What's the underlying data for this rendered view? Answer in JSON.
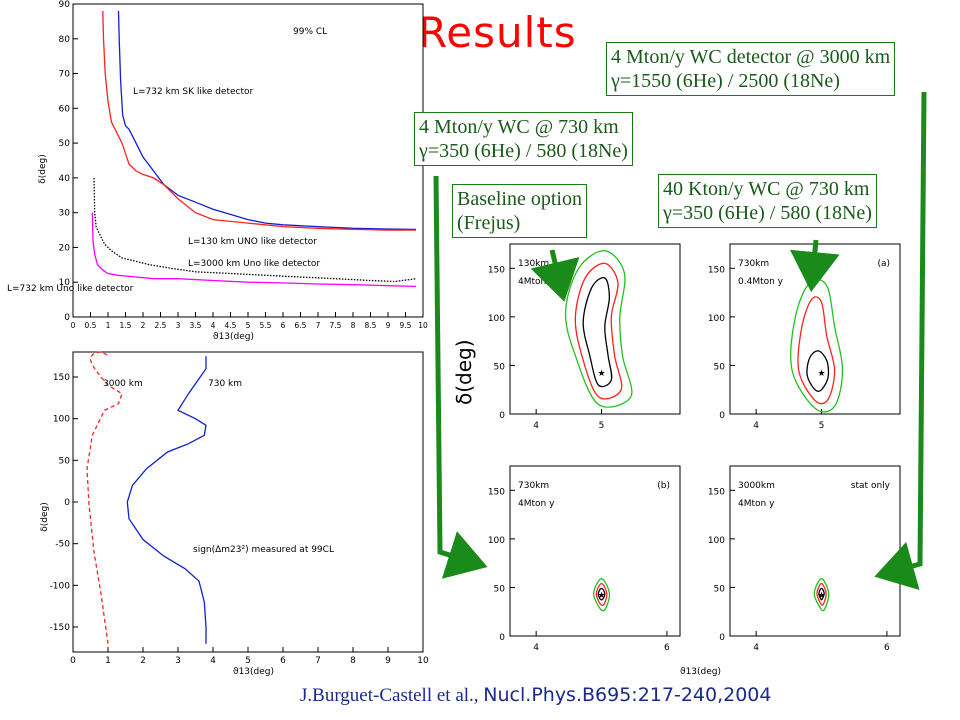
{
  "slide": {
    "title": "Results",
    "citation_authors": "J.Burguet-Castell et al.,",
    "citation_journal": "Nucl.Phys.B695:217-240,2004"
  },
  "callouts": {
    "box_3000": {
      "line1": "4 Mton/y WC detector @ 3000 km",
      "line2": "γ=1550 (6He) / 2500 (18Ne)"
    },
    "box_730_4mton": {
      "line1": "4 Mton/y WC @ 730 km",
      "line2": "γ=350 (6He) / 580 (18Ne)"
    },
    "box_baseline": {
      "line1": "Baseline option",
      "line2": "(Frejus)"
    },
    "box_730_40kton": {
      "line1": "40 Kton/y WC @ 730 km",
      "line2": "γ=350 (6He) / 580 (18Ne)"
    }
  },
  "colors": {
    "arrow": "#1a8a1a",
    "red": "#ff2020",
    "blue": "#1020d0",
    "magenta": "#ff00ff",
    "green": "#20c020",
    "title": "#ff0000"
  },
  "chart_data": [
    {
      "type": "line",
      "title": "99% CL",
      "xlabel": "ϑ13(deg)",
      "ylabel": "δ(deg)",
      "xlim": [
        0,
        10
      ],
      "ylim": [
        0,
        90
      ],
      "xticks": [
        "0",
        "0.5",
        "1",
        "1.5",
        "2",
        "2.5",
        "3",
        "3.5",
        "4",
        "4.5",
        "5",
        "5.5",
        "6",
        "6.5",
        "7",
        "7.5",
        "8",
        "8.5",
        "9",
        "9.5",
        "10"
      ],
      "yticks": [
        "0",
        "10",
        "20",
        "30",
        "40",
        "50",
        "60",
        "70",
        "80",
        "90"
      ],
      "series": [
        {
          "name": "L=732 km SK like detector",
          "color": "#1020d0",
          "style": "solid",
          "x": [
            1.3,
            1.32,
            1.36,
            1.42,
            1.5,
            1.6,
            1.8,
            2.0,
            2.3,
            2.6,
            3.0,
            3.5,
            4.0,
            5.0,
            5.5,
            6.0,
            7.0,
            8.0,
            9.0,
            9.8
          ],
          "y": [
            88,
            80,
            68,
            58,
            55,
            54,
            50,
            46,
            42,
            38,
            35,
            33,
            31,
            28,
            27,
            26.5,
            26,
            25.5,
            25.3,
            25.2
          ]
        },
        {
          "name": "L=130 km UNO like detector",
          "color": "#ff2020",
          "style": "solid",
          "x": [
            0.85,
            0.87,
            0.92,
            1.0,
            1.1,
            1.25,
            1.4,
            1.6,
            1.8,
            2.0,
            2.3,
            2.6,
            3.0,
            3.5,
            4.0,
            5.0,
            6.0,
            7.0,
            8.0,
            9.0,
            9.8
          ],
          "y": [
            88,
            80,
            70,
            62,
            56,
            53,
            50,
            44,
            42,
            41,
            40,
            38,
            34,
            30,
            28,
            27,
            26,
            25.5,
            25.2,
            25,
            25
          ]
        },
        {
          "name": "L=3000 km Uno like detector",
          "color": "#000000",
          "style": "dotted",
          "x": [
            0.6,
            0.62,
            0.66,
            0.75,
            0.9,
            1.1,
            1.4,
            1.8,
            2.2,
            2.8,
            3.5,
            4.5,
            5.5,
            6.5,
            7.5,
            8.5,
            9.2,
            9.8
          ],
          "y": [
            40,
            30,
            26,
            24,
            21,
            19,
            17,
            16,
            15,
            14,
            13,
            12.5,
            12,
            11.5,
            11,
            10.5,
            10.2,
            11
          ]
        },
        {
          "name": "L=732 km Uno like detector",
          "color": "#ff00ff",
          "style": "solid",
          "x": [
            0.55,
            0.57,
            0.62,
            0.7,
            0.85,
            1.0,
            1.3,
            1.8,
            2.3,
            3.0,
            4.0,
            5.0,
            6.0,
            7.0,
            8.0,
            9.0,
            9.8
          ],
          "y": [
            30,
            22,
            18,
            15,
            13.5,
            12.5,
            12,
            11.5,
            11,
            11,
            10.5,
            10,
            9.8,
            9.5,
            9.3,
            9,
            8.8
          ]
        }
      ]
    },
    {
      "type": "line",
      "title": "",
      "xlabel": "ϑ13(deg)",
      "ylabel": "δ(deg)",
      "annotation": "sign(Δm23²) measured at 99CL",
      "xlim": [
        0,
        10
      ],
      "ylim": [
        -180,
        180
      ],
      "xticks": [
        "0",
        "1",
        "2",
        "3",
        "4",
        "5",
        "6",
        "7",
        "8",
        "9",
        "10"
      ],
      "yticks": [
        "-150",
        "-100",
        "-50",
        "0",
        "50",
        "100",
        "150"
      ],
      "series": [
        {
          "name": "3000 km",
          "color": "#ff2020",
          "style": "dashed",
          "x": [
            1.0,
            0.9,
            0.8,
            0.6,
            0.45,
            0.4,
            0.55,
            0.9,
            1.3,
            1.4,
            1.0,
            0.8,
            0.65,
            0.55,
            0.5,
            0.52,
            0.6,
            0.75,
            0.9,
            1.05
          ],
          "y": [
            -170,
            -140,
            -110,
            -60,
            0,
            40,
            80,
            110,
            118,
            130,
            140,
            150,
            158,
            165,
            170,
            175,
            178,
            180,
            178,
            175
          ]
        },
        {
          "name": "730 km",
          "color": "#1020d0",
          "style": "solid",
          "x": [
            3.8,
            3.8,
            3.75,
            3.6,
            3.2,
            2.6,
            2.0,
            1.6,
            1.55,
            1.7,
            2.1,
            2.7,
            3.3,
            3.75,
            3.8,
            3.5,
            3.0,
            3.3,
            3.8,
            3.8
          ],
          "y": [
            -170,
            -150,
            -120,
            -95,
            -80,
            -65,
            -45,
            -20,
            0,
            20,
            40,
            60,
            70,
            80,
            92,
            100,
            110,
            130,
            160,
            175
          ]
        }
      ]
    },
    {
      "type": "scatter",
      "title": "",
      "panel_label": "130km",
      "panel_sub": "4Mton",
      "corner_tag": "",
      "xlabel": "",
      "ylabel": "δ(deg)",
      "xlim": [
        3.6,
        6.2
      ],
      "ylim": [
        0,
        175
      ],
      "xticks": [
        "4",
        "5"
      ],
      "yticks": [
        "0",
        "50",
        "100",
        "150"
      ],
      "star": {
        "x": 5.0,
        "y": 43
      },
      "contours": [
        {
          "name": "inner",
          "color": "#000000",
          "cx": 4.85,
          "points": [
            [
              4.95,
              30
            ],
            [
              4.82,
              60
            ],
            [
              4.72,
              95
            ],
            [
              4.85,
              130
            ],
            [
              5.05,
              140
            ],
            [
              5.12,
              120
            ],
            [
              5.05,
              90
            ],
            [
              5.1,
              60
            ],
            [
              5.15,
              35
            ]
          ]
        },
        {
          "name": "middle",
          "color": "#ff2020",
          "points": [
            [
              4.95,
              18
            ],
            [
              4.7,
              60
            ],
            [
              4.6,
              100
            ],
            [
              4.75,
              140
            ],
            [
              5.05,
              155
            ],
            [
              5.25,
              135
            ],
            [
              5.15,
              100
            ],
            [
              5.2,
              60
            ],
            [
              5.3,
              25
            ]
          ]
        },
        {
          "name": "outer",
          "color": "#20c020",
          "points": [
            [
              4.95,
              10
            ],
            [
              4.6,
              60
            ],
            [
              4.45,
              105
            ],
            [
              4.65,
              150
            ],
            [
              5.05,
              168
            ],
            [
              5.35,
              145
            ],
            [
              5.28,
              100
            ],
            [
              5.32,
              60
            ],
            [
              5.45,
              18
            ]
          ]
        }
      ]
    },
    {
      "type": "scatter",
      "title": "",
      "panel_label": "730km",
      "panel_sub": "0.4Mton y",
      "corner_tag": "(a)",
      "xlabel": "",
      "ylabel": "",
      "xlim": [
        3.6,
        6.2
      ],
      "ylim": [
        0,
        175
      ],
      "xticks": [
        "4",
        "5"
      ],
      "yticks": [
        "0",
        "50",
        "100",
        "150"
      ],
      "star": {
        "x": 5.0,
        "y": 43
      },
      "contours": [
        {
          "name": "inner",
          "color": "#000000",
          "points": [
            [
              4.9,
              25
            ],
            [
              4.78,
              40
            ],
            [
              4.82,
              58
            ],
            [
              4.95,
              65
            ],
            [
              5.08,
              55
            ],
            [
              5.1,
              38
            ],
            [
              5.0,
              25
            ]
          ]
        },
        {
          "name": "middle",
          "color": "#ff2020",
          "points": [
            [
              4.9,
              14
            ],
            [
              4.65,
              45
            ],
            [
              4.7,
              90
            ],
            [
              4.85,
              118
            ],
            [
              5.0,
              115
            ],
            [
              5.08,
              80
            ],
            [
              5.2,
              45
            ],
            [
              5.1,
              15
            ]
          ]
        },
        {
          "name": "outer",
          "color": "#20c020",
          "points": [
            [
              4.9,
              6
            ],
            [
              4.55,
              45
            ],
            [
              4.6,
              100
            ],
            [
              4.82,
              135
            ],
            [
              5.08,
              132
            ],
            [
              5.2,
              90
            ],
            [
              5.32,
              45
            ],
            [
              5.2,
              8
            ]
          ]
        }
      ]
    },
    {
      "type": "scatter",
      "title": "",
      "panel_label": "730km",
      "panel_sub": "4Mton y",
      "corner_tag": "(b)",
      "xlabel": "",
      "ylabel": "",
      "xlim": [
        3.6,
        6.2
      ],
      "ylim": [
        0,
        175
      ],
      "xticks": [
        "4",
        "6"
      ],
      "yticks": [
        "0",
        "50",
        "100",
        "150"
      ],
      "star": {
        "x": 5.0,
        "y": 43
      },
      "contours": [
        {
          "name": "inner",
          "color": "#000000",
          "points": [
            [
              4.98,
              38
            ],
            [
              4.95,
              44
            ],
            [
              5.0,
              49
            ],
            [
              5.05,
              44
            ],
            [
              5.02,
              38
            ]
          ]
        },
        {
          "name": "middle",
          "color": "#ff2020",
          "points": [
            [
              4.98,
              33
            ],
            [
              4.92,
              44
            ],
            [
              5.0,
              54
            ],
            [
              5.08,
              44
            ],
            [
              5.04,
              33
            ]
          ]
        },
        {
          "name": "outer",
          "color": "#20c020",
          "points": [
            [
              4.98,
              28
            ],
            [
              4.88,
              44
            ],
            [
              5.0,
              59
            ],
            [
              5.12,
              44
            ],
            [
              5.06,
              28
            ]
          ]
        }
      ]
    },
    {
      "type": "scatter",
      "title": "",
      "panel_label": "3000km",
      "panel_sub": "4Mton y",
      "corner_tag": "stat only",
      "xlabel": "ϑ13(deg)",
      "ylabel": "",
      "xlim": [
        3.6,
        6.2
      ],
      "ylim": [
        0,
        175
      ],
      "xticks": [
        "4",
        "6"
      ],
      "yticks": [
        "0",
        "50",
        "100",
        "150"
      ],
      "star": {
        "x": 5.0,
        "y": 43
      },
      "contours": [
        {
          "name": "inner",
          "color": "#000000",
          "points": [
            [
              4.99,
              38
            ],
            [
              4.96,
              44
            ],
            [
              5.0,
              49
            ],
            [
              5.04,
              44
            ],
            [
              5.01,
              38
            ]
          ]
        },
        {
          "name": "middle",
          "color": "#ff2020",
          "points": [
            [
              4.99,
              33
            ],
            [
              4.93,
              44
            ],
            [
              5.0,
              54
            ],
            [
              5.07,
              44
            ],
            [
              5.03,
              33
            ]
          ]
        },
        {
          "name": "outer",
          "color": "#20c020",
          "points": [
            [
              4.99,
              28
            ],
            [
              4.89,
              44
            ],
            [
              5.0,
              59
            ],
            [
              5.11,
              44
            ],
            [
              5.05,
              28
            ]
          ]
        }
      ]
    }
  ]
}
